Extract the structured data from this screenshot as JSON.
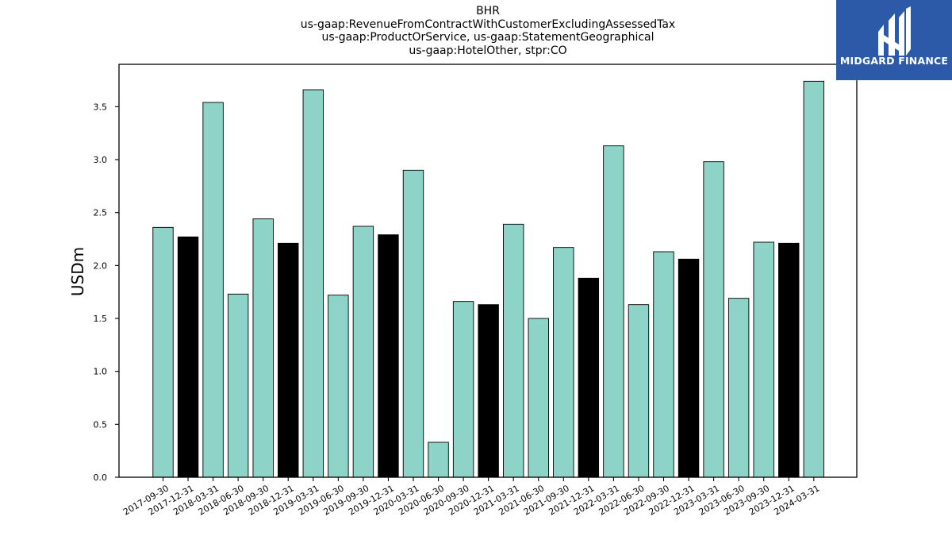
{
  "chart_data": {
    "type": "bar",
    "title_lines": [
      "BHR",
      "us-gaap:RevenueFromContractWithCustomerExcludingAssessedTax",
      "us-gaap:ProductOrService, us-gaap:StatementGeographical",
      "us-gaap:HotelOther, stpr:CO"
    ],
    "ylabel": "USDm",
    "xlabel": "",
    "ylim": [
      0,
      3.9
    ],
    "yticks": [
      "0.0",
      "0.5",
      "1.0",
      "1.5",
      "2.0",
      "2.5",
      "3.0",
      "3.5"
    ],
    "categories": [
      "2017-09-30",
      "2017-12-31",
      "2018-03-31",
      "2018-06-30",
      "2018-09-30",
      "2018-12-31",
      "2019-03-31",
      "2019-06-30",
      "2019-09-30",
      "2019-12-31",
      "2020-03-31",
      "2020-06-30",
      "2020-09-30",
      "2020-12-31",
      "2021-03-31",
      "2021-06-30",
      "2021-09-30",
      "2021-12-31",
      "2022-03-31",
      "2022-06-30",
      "2022-09-30",
      "2022-12-31",
      "2023-03-31",
      "2023-06-30",
      "2023-09-30",
      "2023-12-31",
      "2024-03-31"
    ],
    "values": [
      2.36,
      2.27,
      3.54,
      1.73,
      2.44,
      2.21,
      3.66,
      1.72,
      2.37,
      2.29,
      2.9,
      0.33,
      1.66,
      1.63,
      2.39,
      1.5,
      2.17,
      1.88,
      3.13,
      1.63,
      2.13,
      2.06,
      2.98,
      1.69,
      2.22,
      2.21,
      3.74
    ],
    "colors": {
      "quarter": "#8dd3c7",
      "year_end": "#000000"
    },
    "bar_color_keys": [
      "quarter",
      "year_end",
      "quarter",
      "quarter",
      "quarter",
      "year_end",
      "quarter",
      "quarter",
      "quarter",
      "year_end",
      "quarter",
      "quarter",
      "quarter",
      "year_end",
      "quarter",
      "quarter",
      "quarter",
      "year_end",
      "quarter",
      "quarter",
      "quarter",
      "year_end",
      "quarter",
      "quarter",
      "quarter",
      "year_end",
      "quarter"
    ],
    "grid": false,
    "legend": "none"
  },
  "logo": {
    "text": "MIDGARD FINANCE",
    "background": "#2c5aa8"
  }
}
